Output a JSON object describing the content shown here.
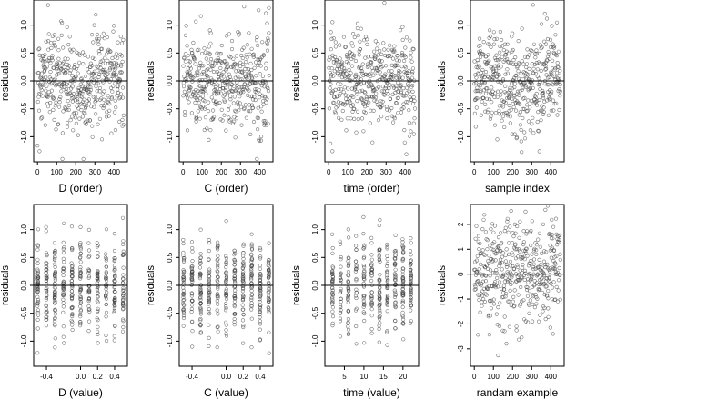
{
  "chart_data": [
    {
      "type": "scatter",
      "xlabel": "D (order)",
      "ylabel": "residuals",
      "x_ticks": [
        0,
        100,
        200,
        300,
        400
      ],
      "x_tick_labels": [
        "0",
        "100",
        "200",
        "300",
        "400"
      ],
      "y_ticks": [
        -1.0,
        -0.5,
        0.0,
        0.5,
        1.0
      ],
      "y_tick_labels": [
        "-1.0",
        "-0.5",
        "0.0",
        "0.5",
        "1.0"
      ],
      "xlim": [
        -20,
        470
      ],
      "ylim": [
        -1.45,
        1.45
      ],
      "reference_line": 0,
      "point_count": 450,
      "pattern": "trend"
    },
    {
      "type": "scatter",
      "xlabel": "C (order)",
      "ylabel": "residuals",
      "x_ticks": [
        0,
        100,
        200,
        300,
        400
      ],
      "x_tick_labels": [
        "0",
        "100",
        "200",
        "300",
        "400"
      ],
      "y_ticks": [
        -1.0,
        -0.5,
        0.0,
        0.5,
        1.0
      ],
      "y_tick_labels": [
        "-1.0",
        "-0.5",
        "0.0",
        "0.5",
        "1.0"
      ],
      "xlim": [
        -20,
        470
      ],
      "ylim": [
        -1.45,
        1.45
      ],
      "reference_line": 0,
      "point_count": 450,
      "pattern": "uniform"
    },
    {
      "type": "scatter",
      "xlabel": "time (order)",
      "ylabel": "residuals",
      "x_ticks": [
        0,
        100,
        200,
        300,
        400
      ],
      "x_tick_labels": [
        "0",
        "100",
        "200",
        "300",
        "400"
      ],
      "y_ticks": [
        -1.0,
        -0.5,
        0.0,
        0.5,
        1.0
      ],
      "y_tick_labels": [
        "-1.0",
        "-0.5",
        "0.0",
        "0.5",
        "1.0"
      ],
      "xlim": [
        -20,
        470
      ],
      "ylim": [
        -1.45,
        1.45
      ],
      "reference_line": 0,
      "point_count": 450,
      "pattern": "uniform"
    },
    {
      "type": "scatter",
      "xlabel": "sample index",
      "ylabel": "residuals",
      "x_ticks": [
        0,
        100,
        200,
        300,
        400
      ],
      "x_tick_labels": [
        "0",
        "100",
        "200",
        "300",
        "400"
      ],
      "y_ticks": [
        -1.0,
        -0.5,
        0.0,
        0.5,
        1.0
      ],
      "y_tick_labels": [
        "-1.0",
        "-0.5",
        "0.0",
        "0.5",
        "1.0"
      ],
      "xlim": [
        -20,
        470
      ],
      "ylim": [
        -1.45,
        1.45
      ],
      "reference_line": 0,
      "point_count": 450,
      "pattern": "trend"
    },
    {
      "type": "scatter",
      "xlabel": "D (value)",
      "ylabel": "residuals",
      "x_ticks": [
        -0.4,
        0.0,
        0.2,
        0.4
      ],
      "x_tick_labels": [
        "-0.4",
        "0.0",
        "0.2",
        "0.4"
      ],
      "y_ticks": [
        -1.0,
        -0.5,
        0.0,
        0.5,
        1.0
      ],
      "y_tick_labels": [
        "-1.0",
        "-0.5",
        "0.0",
        "0.5",
        "1.0"
      ],
      "xlim": [
        -0.55,
        0.55
      ],
      "ylim": [
        -1.45,
        1.45
      ],
      "reference_line": 0,
      "point_count": 450,
      "pattern": "discrete",
      "x_levels": [
        -0.5,
        -0.4,
        -0.3,
        -0.2,
        -0.1,
        0.0,
        0.1,
        0.2,
        0.3,
        0.4,
        0.5
      ]
    },
    {
      "type": "scatter",
      "xlabel": "C (value)",
      "ylabel": "residuals",
      "x_ticks": [
        -0.4,
        0.0,
        0.2,
        0.4
      ],
      "x_tick_labels": [
        "-0.4",
        "0.0",
        "0.2",
        "0.4"
      ],
      "y_ticks": [
        -1.0,
        -0.5,
        0.0,
        0.5,
        1.0
      ],
      "y_tick_labels": [
        "-1.0",
        "-0.5",
        "0.0",
        "0.5",
        "1.0"
      ],
      "xlim": [
        -0.55,
        0.55
      ],
      "ylim": [
        -1.45,
        1.45
      ],
      "reference_line": 0,
      "point_count": 450,
      "pattern": "discrete",
      "x_levels": [
        -0.5,
        -0.4,
        -0.3,
        -0.2,
        -0.1,
        0.0,
        0.1,
        0.2,
        0.3,
        0.4,
        0.5
      ]
    },
    {
      "type": "scatter",
      "xlabel": "time (value)",
      "ylabel": "residuals",
      "x_ticks": [
        5,
        10,
        15,
        20
      ],
      "x_tick_labels": [
        "5",
        "10",
        "15",
        "20"
      ],
      "y_ticks": [
        -1.0,
        -0.5,
        0.0,
        0.5,
        1.0
      ],
      "y_tick_labels": [
        "-1.0",
        "-0.5",
        "0.0",
        "0.5",
        "1.0"
      ],
      "xlim": [
        0,
        24
      ],
      "ylim": [
        -1.45,
        1.45
      ],
      "reference_line": 0,
      "point_count": 450,
      "pattern": "discrete",
      "x_levels": [
        2,
        4,
        6,
        8,
        10,
        12,
        14,
        16,
        18,
        20,
        22,
        24
      ]
    },
    {
      "type": "scatter",
      "xlabel": "randam example",
      "ylabel": "residuals",
      "x_ticks": [
        0,
        100,
        200,
        300,
        400
      ],
      "x_tick_labels": [
        "0",
        "100",
        "200",
        "300",
        "400"
      ],
      "y_ticks": [
        -3,
        -2,
        -1,
        0,
        1,
        2
      ],
      "y_tick_labels": [
        "-3",
        "-2",
        "-1",
        "0",
        "1",
        "2"
      ],
      "xlim": [
        -20,
        470
      ],
      "ylim": [
        -3.7,
        2.8
      ],
      "reference_line": 0,
      "point_count": 450,
      "pattern": "uniform"
    }
  ]
}
